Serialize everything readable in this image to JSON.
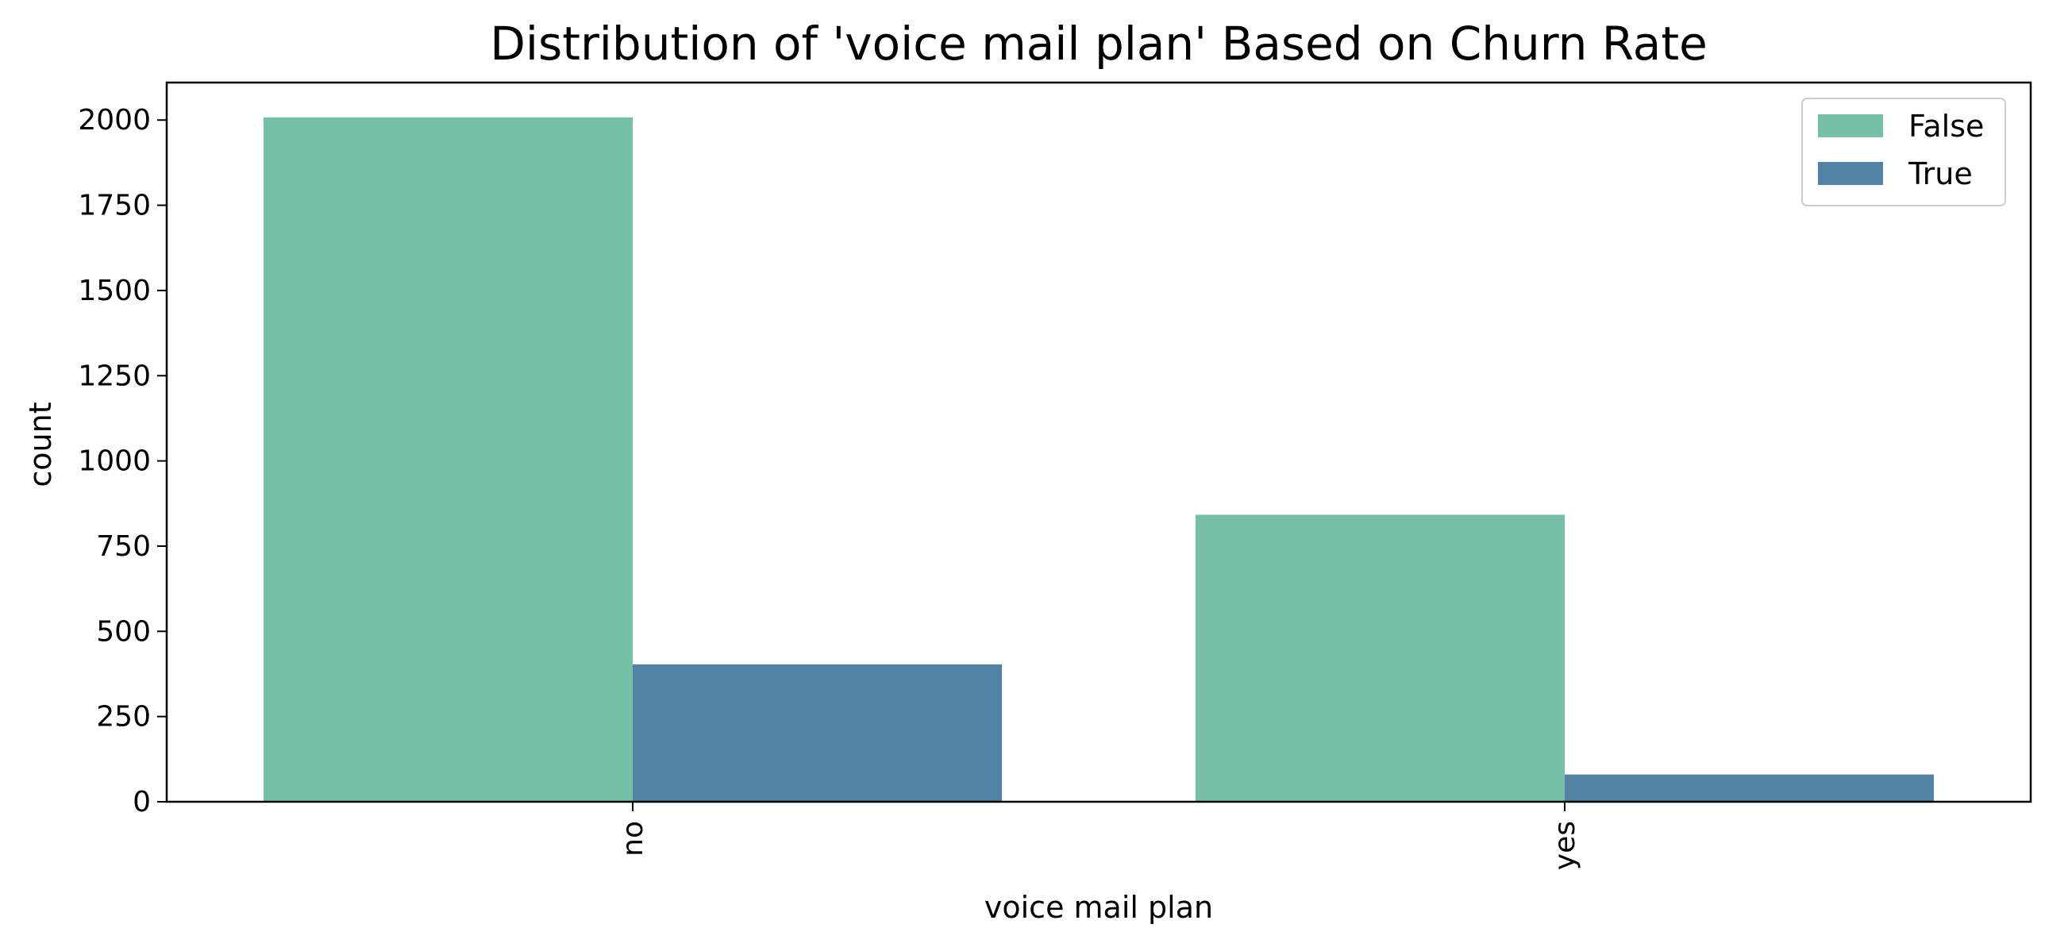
{
  "chart_data": {
    "type": "bar",
    "title": "Distribution of 'voice mail plan' Based on Churn Rate",
    "xlabel": "voice mail plan",
    "ylabel": "count",
    "categories": [
      "no",
      "yes"
    ],
    "series": [
      {
        "name": "False",
        "color": "#75c0a6",
        "values": [
          2008,
          842
        ]
      },
      {
        "name": "True",
        "color": "#5382a7",
        "values": [
          403,
          80
        ]
      }
    ],
    "ylim": [
      0,
      2110
    ],
    "yticks": [
      0,
      250,
      500,
      750,
      1000,
      1250,
      1500,
      1750,
      2000
    ],
    "grid": false,
    "legend_position": "top-right"
  }
}
